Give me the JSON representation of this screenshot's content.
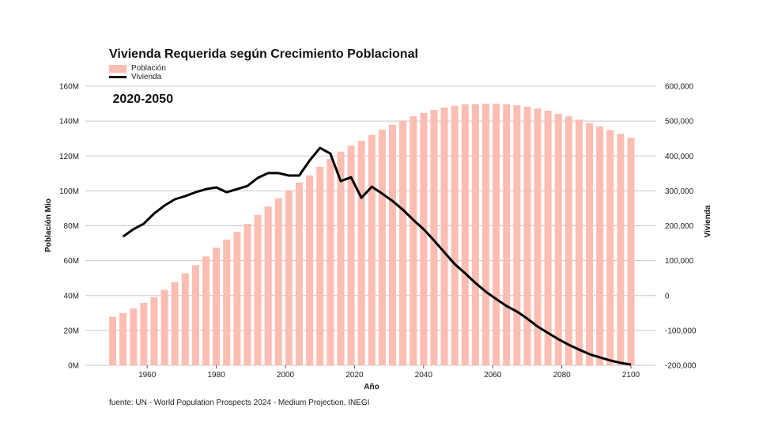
{
  "title_line1": "Vivienda Requerida según Crecimiento Poblacional",
  "title_line2": " 2020-2050",
  "legend": {
    "bar_label": "Población",
    "line_label": "Vivienda"
  },
  "footer": "fuente: UN - World Population Prospects 2024 - Medium Projection, INEGI",
  "colors": {
    "bar": "#FCBDB3",
    "line": "#000000",
    "grid": "#C8C8C8"
  },
  "chart_data": {
    "type": "bar",
    "title": "Vivienda Requerida según Crecimiento Poblacional 2020-2050",
    "xlabel": "Año",
    "ylabel": "Población Mio",
    "y2label": "Vivienda",
    "xlim": [
      1945,
      2105
    ],
    "ylim": [
      0,
      160
    ],
    "y2lim": [
      -200000,
      600000
    ],
    "grid": true,
    "legend_position": "top-left",
    "x_ticks": [
      1960,
      1980,
      2000,
      2020,
      2040,
      2060,
      2080,
      2100
    ],
    "y_ticks": [
      0,
      20,
      40,
      60,
      80,
      100,
      120,
      140,
      160
    ],
    "y_tick_labels": [
      "0M",
      "20M",
      "40M",
      "60M",
      "80M",
      "100M",
      "120M",
      "140M",
      "160M"
    ],
    "y2_ticks": [
      -200000,
      -100000,
      0,
      100000,
      200000,
      300000,
      400000,
      500000,
      600000
    ],
    "y2_tick_labels": [
      "-200,000",
      "-100,000",
      "0",
      "100,000",
      "200,000",
      "300,000",
      "400,000",
      "500,000",
      "600,000"
    ],
    "series": [
      {
        "name": "Población",
        "type": "bar",
        "axis": "left",
        "unit": "millions",
        "x": [
          1950,
          1953,
          1956,
          1959,
          1962,
          1965,
          1968,
          1971,
          1974,
          1977,
          1980,
          1983,
          1986,
          1989,
          1992,
          1995,
          1998,
          2001,
          2004,
          2007,
          2010,
          2013,
          2016,
          2019,
          2022,
          2025,
          2028,
          2031,
          2034,
          2037,
          2040,
          2043,
          2046,
          2049,
          2052,
          2055,
          2058,
          2061,
          2064,
          2067,
          2070,
          2073,
          2076,
          2079,
          2082,
          2085,
          2088,
          2091,
          2094,
          2097,
          2100
        ],
        "values": [
          27.8,
          29.9,
          32.6,
          35.8,
          39.1,
          43.2,
          47.7,
          52.7,
          57.4,
          62.4,
          67.4,
          72.1,
          76.6,
          81.1,
          86.2,
          91.1,
          95.8,
          100.3,
          104.7,
          108.9,
          113.8,
          118.3,
          122.5,
          125.9,
          128.7,
          132.1,
          135.1,
          137.9,
          140.3,
          142.7,
          144.7,
          146.4,
          147.8,
          148.8,
          149.6,
          149.7,
          149.9,
          149.9,
          149.6,
          149.1,
          148.3,
          147.2,
          146.0,
          144.2,
          142.7,
          140.8,
          139.0,
          136.9,
          134.9,
          132.7,
          130.4
        ]
      },
      {
        "name": "Vivienda",
        "type": "line",
        "axis": "right",
        "x": [
          1953,
          1956,
          1959,
          1962,
          1965,
          1968,
          1971,
          1974,
          1977,
          1980,
          1983,
          1986,
          1989,
          1992,
          1995,
          1998,
          2001,
          2004,
          2007,
          2010,
          2013,
          2016,
          2019,
          2022,
          2025,
          2028,
          2031,
          2034,
          2037,
          2040,
          2043,
          2046,
          2049,
          2052,
          2055,
          2058,
          2061,
          2064,
          2067,
          2070,
          2073,
          2076,
          2079,
          2082,
          2085,
          2088,
          2091,
          2094,
          2097,
          2100
        ],
        "values": [
          169000,
          190000,
          206000,
          235000,
          258000,
          276000,
          285000,
          296000,
          305000,
          310000,
          296000,
          305000,
          314000,
          337000,
          351000,
          351000,
          344000,
          344000,
          387000,
          423000,
          407000,
          328000,
          339000,
          280000,
          312000,
          292000,
          271000,
          246000,
          217000,
          190000,
          158000,
          124000,
          90000,
          64000,
          36000,
          11000,
          -10000,
          -30000,
          -46000,
          -66000,
          -89000,
          -107000,
          -125000,
          -141000,
          -155000,
          -168000,
          -177000,
          -186000,
          -193000,
          -198000
        ]
      }
    ]
  }
}
